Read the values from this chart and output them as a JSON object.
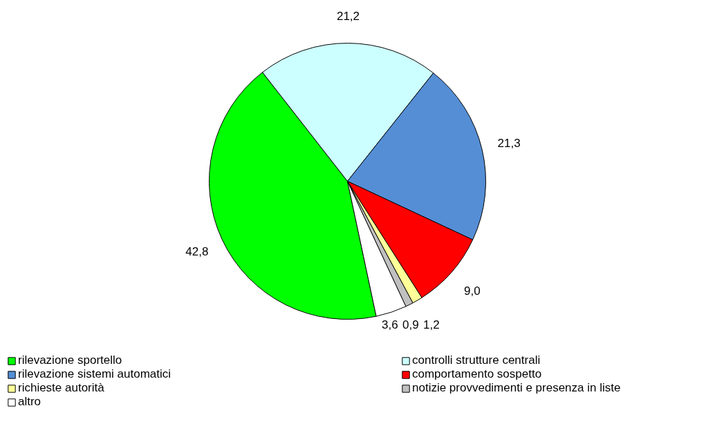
{
  "chart_data": {
    "type": "pie",
    "categories": [
      "rilevazione sportello",
      "controlli strutture centrali",
      "rilevazione sistemi automatici",
      "comportamento sospetto",
      "richieste autorità",
      "notizie provvedimenti e presenza in liste",
      "altro"
    ],
    "values": [
      42.8,
      21.2,
      21.3,
      9.0,
      1.2,
      0.9,
      3.6
    ],
    "value_labels": [
      "42,8",
      "21,2",
      "21,3",
      "9,0",
      "1,2",
      "0,9",
      "3,6"
    ],
    "colors": [
      "#00ff00",
      "#ccffff",
      "#558ed5",
      "#ff0000",
      "#ffff99",
      "#c0c0c0",
      "#ffffff"
    ],
    "legend": "bottom"
  }
}
